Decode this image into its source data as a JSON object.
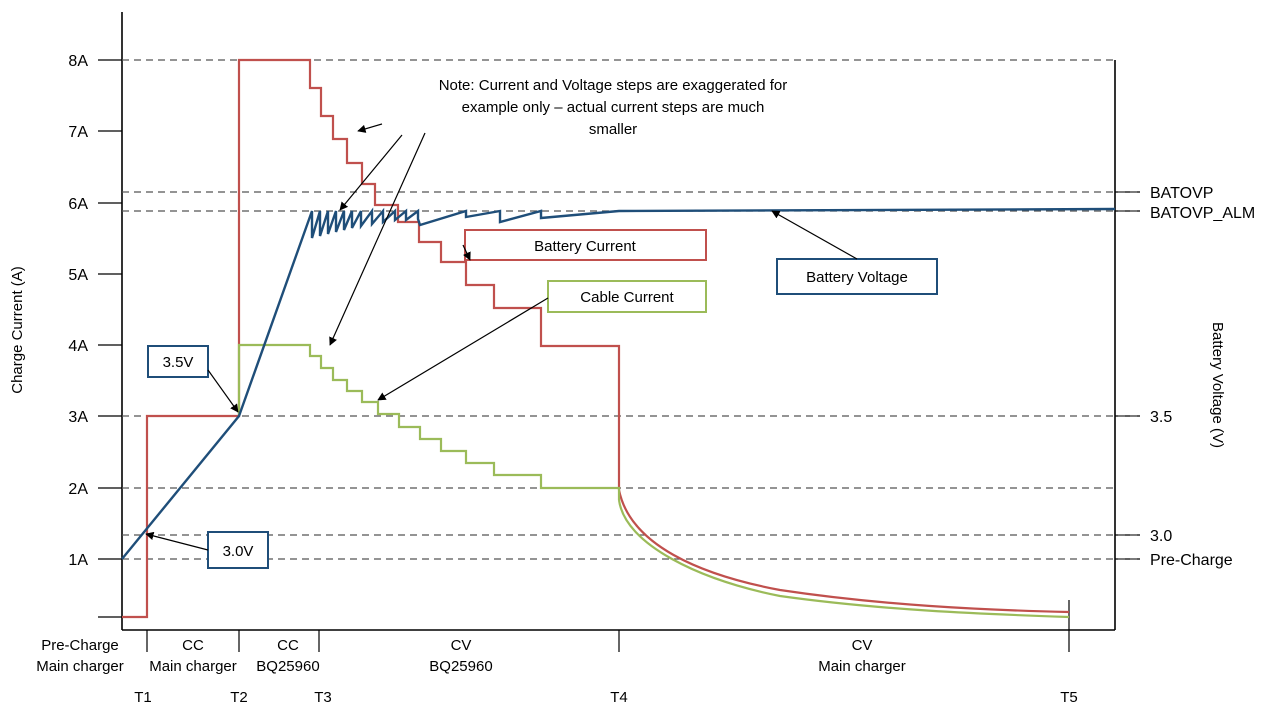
{
  "chart_data": {
    "type": "line",
    "title": "",
    "ylabel_left": "Charge Current (A)",
    "ylabel_right": "Battery Voltage (V)",
    "y_ticks_left": [
      "1A",
      "2A",
      "3A",
      "4A",
      "5A",
      "6A",
      "7A",
      "8A"
    ],
    "right_markers": [
      "BATOVP",
      "BATOVP_ALM",
      "3.5",
      "3.0",
      "Pre-Charge"
    ],
    "time_markers": [
      "T1",
      "T2",
      "T3",
      "T4",
      "T5"
    ],
    "phases": [
      {
        "line1": "Pre-Charge",
        "line2": "Main charger"
      },
      {
        "line1": "CC",
        "line2": "Main charger"
      },
      {
        "line1": "CC",
        "line2": "BQ25960"
      },
      {
        "line1": "CV",
        "line2": "BQ25960"
      },
      {
        "line1": "CV",
        "line2": "Main charger"
      }
    ],
    "note_lines": [
      "Note: Current and Voltage steps are exaggerated for",
      "example only – actual current steps are much",
      "smaller"
    ],
    "series": [
      {
        "name": "Battery Current",
        "color": "#c0504d"
      },
      {
        "name": "Cable Current",
        "color": "#9bbb59"
      },
      {
        "name": "Battery Voltage",
        "color": "#1f4e79"
      }
    ],
    "callouts": [
      "3.5V",
      "3.0V"
    ],
    "grid": "dashed horizontal reference lines"
  }
}
